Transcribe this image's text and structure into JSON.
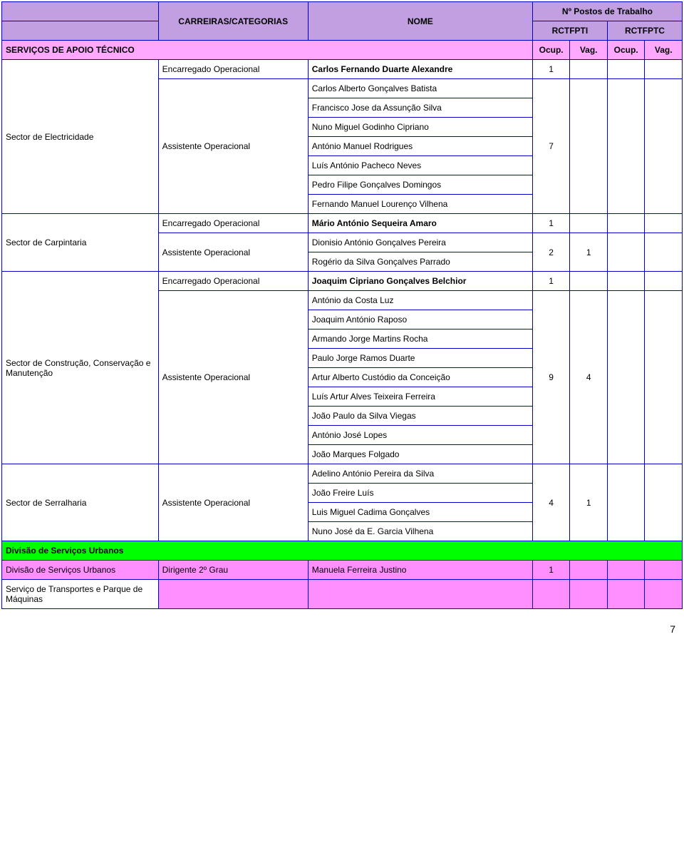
{
  "header": {
    "carreiras": "CARREIRAS/CATEGORIAS",
    "nome": "NOME",
    "postos": "Nº Postos de Trabalho",
    "rctfpti": "RCTFPTI",
    "rctfptc": "RCTFPTC",
    "ocup": "Ocup.",
    "vag": "Vag."
  },
  "section_header": "SERVIÇOS DE APOIO TÉCNICO",
  "rows": [
    {
      "sector": "Sector de Electricidade",
      "sector_rowspan": 8,
      "categoria": "Encarregado Operacional",
      "categoria_rowspan": 1,
      "nome": "Carlos Fernando Duarte Alexandre",
      "bold": true,
      "c1": "1",
      "c2": "",
      "c3": "",
      "c4": "",
      "c1_rowspan": 1
    },
    {
      "categoria": "Assistente Operacional",
      "categoria_rowspan": 7,
      "nome": "Carlos Alberto Gonçalves Batista",
      "c1": "7",
      "c1_rowspan": 7
    },
    {
      "nome": "Francisco Jose da Assunção Silva"
    },
    {
      "nome": "Nuno Miguel Godinho Cipriano"
    },
    {
      "nome": "António Manuel Rodrigues"
    },
    {
      "nome": "Luís António Pacheco Neves"
    },
    {
      "nome": "Pedro Filipe Gonçalves Domingos"
    },
    {
      "nome": "Fernando Manuel Lourenço Vilhena"
    },
    {
      "sector": "Sector de Carpintaria",
      "sector_rowspan": 3,
      "categoria": "Encarregado Operacional",
      "categoria_rowspan": 1,
      "nome": "Mário António Sequeira Amaro",
      "bold": true,
      "c1": "1",
      "c2": "",
      "c1_rowspan": 1
    },
    {
      "categoria": "Assistente Operacional",
      "categoria_rowspan": 2,
      "nome": "Dionisio António Gonçalves Pereira",
      "c1": "2",
      "c2": "1",
      "c1_rowspan": 2
    },
    {
      "nome": "Rogério da Silva Gonçalves Parrado"
    },
    {
      "sector": "Sector de Construção, Conservação e Manutenção",
      "sector_rowspan": 10,
      "categoria": "Encarregado Operacional",
      "categoria_rowspan": 1,
      "nome": "Joaquim Cipriano Gonçalves Belchior",
      "bold": true,
      "c1": "1",
      "c2": "",
      "c1_rowspan": 1
    },
    {
      "categoria": "Assistente Operacional",
      "categoria_rowspan": 9,
      "nome": "António da Costa Luz",
      "c1": "9",
      "c2": "4",
      "c1_rowspan": 9
    },
    {
      "nome": "Joaquim António Raposo"
    },
    {
      "nome": "Armando Jorge Martins Rocha"
    },
    {
      "nome": "Paulo Jorge Ramos Duarte"
    },
    {
      "nome": "Artur Alberto Custódio da Conceição"
    },
    {
      "nome": "Luís Artur Alves Teixeira Ferreira"
    },
    {
      "nome": "João Paulo da Silva Viegas"
    },
    {
      "nome": "António José Lopes"
    },
    {
      "nome": "João Marques Folgado"
    },
    {
      "sector": "Sector de Serralharia",
      "sector_rowspan": 4,
      "categoria": "Assistente Operacional",
      "categoria_rowspan": 4,
      "nome": "Adelino António Pereira da Silva",
      "c1": "4",
      "c2": "1",
      "c1_rowspan": 4
    },
    {
      "nome": "João Freire Luís"
    },
    {
      "nome": "Luis Miguel Cadima Gonçalves"
    },
    {
      "nome": "Nuno José da E. Garcia Vilhena"
    }
  ],
  "green_section": "Divisão de Serviços Urbanos",
  "pink_rows": [
    {
      "sector": "Divisão de Serviços Urbanos",
      "categoria": "Dirigente 2º Grau",
      "nome": "Manuela Ferreira Justino",
      "c1": "1",
      "c2": "",
      "c3": "",
      "c4": ""
    },
    {
      "sector": "Serviço de Transportes e Parque de Máquinas",
      "categoria": "",
      "nome": "",
      "c1": "",
      "c2": "",
      "c3": "",
      "c4": "",
      "white_sector": true
    }
  ],
  "page_num": "7"
}
